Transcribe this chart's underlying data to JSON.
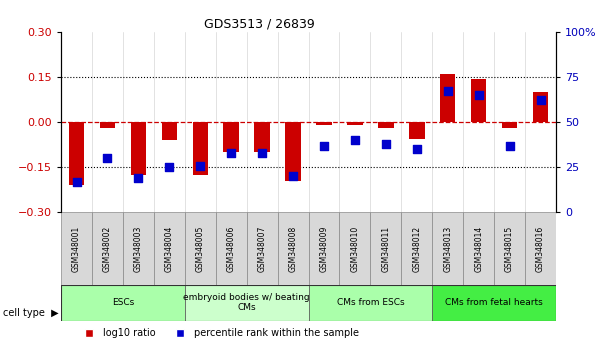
{
  "title": "GDS3513 / 26839",
  "samples": [
    "GSM348001",
    "GSM348002",
    "GSM348003",
    "GSM348004",
    "GSM348005",
    "GSM348006",
    "GSM348007",
    "GSM348008",
    "GSM348009",
    "GSM348010",
    "GSM348011",
    "GSM348012",
    "GSM348013",
    "GSM348014",
    "GSM348015",
    "GSM348016"
  ],
  "log10_ratio": [
    -0.21,
    -0.02,
    -0.175,
    -0.06,
    -0.175,
    -0.1,
    -0.1,
    -0.195,
    -0.01,
    -0.01,
    -0.02,
    -0.055,
    0.16,
    0.145,
    -0.02,
    0.1
  ],
  "percentile_rank": [
    17,
    30,
    19,
    25,
    26,
    33,
    33,
    20,
    37,
    40,
    38,
    35,
    67,
    65,
    37,
    62
  ],
  "cell_types": [
    {
      "label": "ESCs",
      "start": 0,
      "end": 3,
      "color": "#aaffaa"
    },
    {
      "label": "embryoid bodies w/ beating\nCMs",
      "start": 4,
      "end": 7,
      "color": "#ccffcc"
    },
    {
      "label": "CMs from ESCs",
      "start": 8,
      "end": 11,
      "color": "#aaffaa"
    },
    {
      "label": "CMs from fetal hearts",
      "start": 12,
      "end": 15,
      "color": "#44ee44"
    }
  ],
  "ylim_left": [
    -0.3,
    0.3
  ],
  "ylim_right": [
    0,
    100
  ],
  "yticks_left": [
    -0.3,
    -0.15,
    0,
    0.15,
    0.3
  ],
  "yticks_right": [
    0,
    25,
    50,
    75,
    100
  ],
  "hlines": [
    -0.15,
    0.0,
    0.15
  ],
  "bar_color": "#cc0000",
  "dot_color": "#0000cc",
  "bar_width": 0.5,
  "dot_size": 28,
  "legend_log10": "log10 ratio",
  "legend_pct": "percentile rank within the sample",
  "cell_type_label": "cell type",
  "bg_color": "#ffffff",
  "tick_label_color_left": "#cc0000",
  "tick_label_color_right": "#0000bb"
}
